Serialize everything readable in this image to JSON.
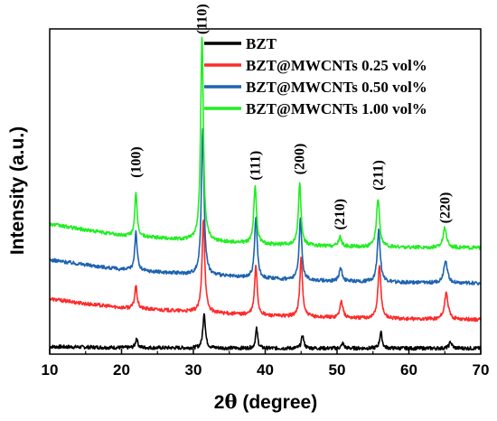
{
  "chart_data": {
    "type": "line",
    "xlabel_prefix": "2",
    "xlabel_theta": "θ",
    "xlabel_suffix": " (degree)",
    "ylabel": "Intensity (a.u.)",
    "xlim": [
      10,
      70
    ],
    "x_ticks": [
      "10",
      "20",
      "30",
      "40",
      "50",
      "60",
      "70"
    ],
    "ylim": [
      0,
      100
    ],
    "legend_position": "top-right",
    "y_ticks_shown": false,
    "grid": false,
    "series": [
      {
        "name": "BZT",
        "color": "#000000",
        "baseline": {
          "x": [
            10,
            20,
            30,
            40,
            50,
            60,
            70
          ],
          "y": [
            2.3,
            2.0,
            1.9,
            1.8,
            1.8,
            1.8,
            1.8
          ]
        },
        "peaks": [
          {
            "x": 22.1,
            "height": 3,
            "width": 0.18
          },
          {
            "x": 31.5,
            "height": 11,
            "width": 0.2
          },
          {
            "x": 38.8,
            "height": 6,
            "width": 0.18
          },
          {
            "x": 45.2,
            "height": 4,
            "width": 0.2
          },
          {
            "x": 50.8,
            "height": 1.5,
            "width": 0.2
          },
          {
            "x": 56.1,
            "height": 5,
            "width": 0.2
          },
          {
            "x": 65.8,
            "height": 2,
            "width": 0.22
          }
        ]
      },
      {
        "name": "BZT@MWCNTs 0.25 vol%",
        "color": "#ff2a2a",
        "baseline": {
          "x": [
            10,
            15,
            20,
            30,
            40,
            50,
            60,
            70
          ],
          "y": [
            17,
            15.5,
            14.3,
            13,
            11.8,
            11.2,
            10.8,
            10.6
          ]
        },
        "peaks": [
          {
            "x": 22.0,
            "height": 7,
            "width": 0.2
          },
          {
            "x": 31.4,
            "height": 29,
            "width": 0.22
          },
          {
            "x": 38.7,
            "height": 15,
            "width": 0.22
          },
          {
            "x": 45.0,
            "height": 18,
            "width": 0.22
          },
          {
            "x": 50.6,
            "height": 5,
            "width": 0.25
          },
          {
            "x": 55.9,
            "height": 16,
            "width": 0.25
          },
          {
            "x": 65.2,
            "height": 8,
            "width": 0.3
          }
        ]
      },
      {
        "name": "BZT@MWCNTs 0.50 vol%",
        "color": "#1e63b0",
        "baseline": {
          "x": [
            10,
            15,
            20,
            30,
            40,
            50,
            60,
            70
          ],
          "y": [
            29,
            27.5,
            26,
            24.5,
            23.2,
            22.4,
            22,
            21.8
          ]
        },
        "peaks": [
          {
            "x": 22.0,
            "height": 12,
            "width": 0.2
          },
          {
            "x": 31.3,
            "height": 45,
            "width": 0.22
          },
          {
            "x": 38.7,
            "height": 19,
            "width": 0.22
          },
          {
            "x": 44.9,
            "height": 19,
            "width": 0.22
          },
          {
            "x": 50.5,
            "height": 4,
            "width": 0.25
          },
          {
            "x": 55.8,
            "height": 16,
            "width": 0.25
          },
          {
            "x": 65.1,
            "height": 7,
            "width": 0.3
          }
        ]
      },
      {
        "name": "BZT@MWCNTs 1.00 vol%",
        "color": "#22ee22",
        "baseline": {
          "x": [
            10,
            15,
            20,
            30,
            40,
            50,
            60,
            70
          ],
          "y": [
            40,
            38.2,
            36.5,
            35,
            33.8,
            33.1,
            32.8,
            32.7
          ]
        },
        "peaks": [
          {
            "x": 22.0,
            "height": 13,
            "width": 0.2
          },
          {
            "x": 31.2,
            "height": 63,
            "width": 0.22
          },
          {
            "x": 38.6,
            "height": 18,
            "width": 0.22
          },
          {
            "x": 44.8,
            "height": 19,
            "width": 0.22
          },
          {
            "x": 50.4,
            "height": 3,
            "width": 0.25
          },
          {
            "x": 55.7,
            "height": 15,
            "width": 0.25
          },
          {
            "x": 65.0,
            "height": 6,
            "width": 0.3
          }
        ]
      }
    ],
    "annotations": [
      {
        "text": "(100)",
        "x": 22.0,
        "y": 59
      },
      {
        "text": "(110)",
        "x": 31.2,
        "y": 103
      },
      {
        "text": "(111)",
        "x": 38.6,
        "y": 58
      },
      {
        "text": "(200)",
        "x": 44.8,
        "y": 60
      },
      {
        "text": "(210)",
        "x": 50.4,
        "y": 43
      },
      {
        "text": "(211)",
        "x": 55.7,
        "y": 55
      },
      {
        "text": "(220)",
        "x": 65.0,
        "y": 45
      }
    ]
  }
}
